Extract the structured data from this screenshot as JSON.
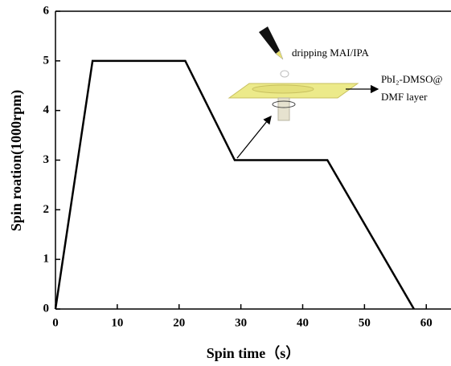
{
  "chart_data": {
    "type": "line",
    "x_label": "Spin time（s）",
    "y_label": "Spin roation(1000rpm)",
    "x": [
      0,
      6,
      21,
      29,
      44,
      58
    ],
    "values": [
      0,
      5,
      5,
      3,
      3,
      0
    ],
    "color": "#000000",
    "xlim": [
      0,
      64
    ],
    "ylim": [
      0,
      6
    ],
    "xticks": [
      0,
      10,
      20,
      30,
      40,
      50,
      60
    ],
    "yticks": [
      0,
      1,
      2,
      3,
      4,
      5,
      6
    ],
    "annotations": [
      "dripping MAI/IPA",
      "PbI₂-DMSO@",
      "DMF layer"
    ]
  }
}
